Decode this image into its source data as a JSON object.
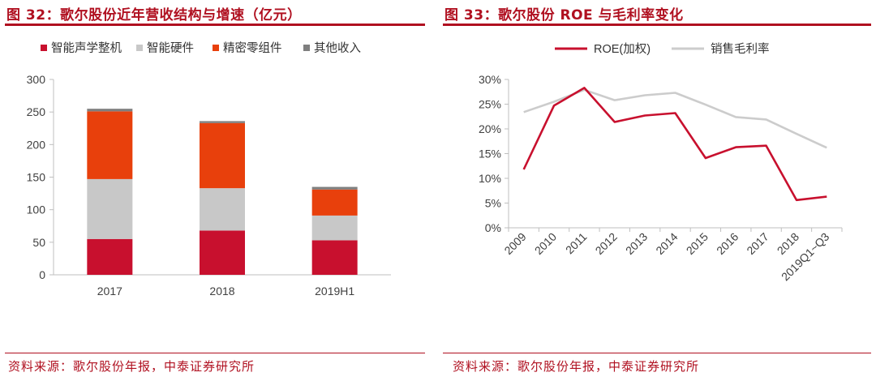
{
  "left": {
    "title": "图 32：歌尔股份近年营收结构与增速（亿元）",
    "source": "资料来源：歌尔股份年报，中泰证券研究所"
  },
  "right": {
    "title": "图 33：歌尔股份 ROE 与毛利率变化",
    "source": "资料来源：歌尔股份年报，中泰证券研究所"
  },
  "colors": {
    "accent": "#b01020",
    "smart_acoustic": "#c8102e",
    "smart_hardware": "#c8c8c8",
    "precision_parts": "#e8400c",
    "other_income": "#7f7f7f",
    "roe": "#c8102e",
    "gross_margin": "#cccccc",
    "axis": "#bfbfbf",
    "tick_text": "#404040"
  },
  "chart_data": [
    {
      "type": "bar",
      "stacked": true,
      "categories": [
        "2017",
        "2018",
        "2019H1"
      ],
      "series": [
        {
          "name": "智能声学整机",
          "values": [
            55,
            68,
            53
          ]
        },
        {
          "name": "智能硬件",
          "values": [
            92,
            65,
            38
          ]
        },
        {
          "name": "精密零组件",
          "values": [
            104,
            100,
            40
          ]
        },
        {
          "name": "其他收入",
          "values": [
            4,
            3,
            4
          ]
        }
      ],
      "ylim": [
        0,
        300
      ],
      "yticks": [
        "0",
        "50",
        "100",
        "150",
        "200",
        "250",
        "300"
      ],
      "legend": "top",
      "grid": false
    },
    {
      "type": "line",
      "categories": [
        "2009",
        "2010",
        "2011",
        "2012",
        "2013",
        "2014",
        "2015",
        "2016",
        "2017",
        "2018",
        "2019Q1~Q3"
      ],
      "series": [
        {
          "name": "ROE(加权)",
          "values": [
            11.8,
            24.7,
            28.3,
            21.4,
            22.7,
            23.2,
            14.1,
            16.3,
            16.6,
            5.6,
            6.3
          ]
        },
        {
          "name": "销售毛利率",
          "values": [
            23.4,
            25.5,
            27.9,
            25.8,
            26.8,
            27.3,
            24.9,
            22.4,
            21.9,
            19.0,
            16.2
          ]
        }
      ],
      "ylim": [
        0,
        30
      ],
      "yticks": [
        "0%",
        "5%",
        "10%",
        "15%",
        "20%",
        "25%",
        "30%"
      ],
      "legend": "top",
      "grid": false
    }
  ]
}
